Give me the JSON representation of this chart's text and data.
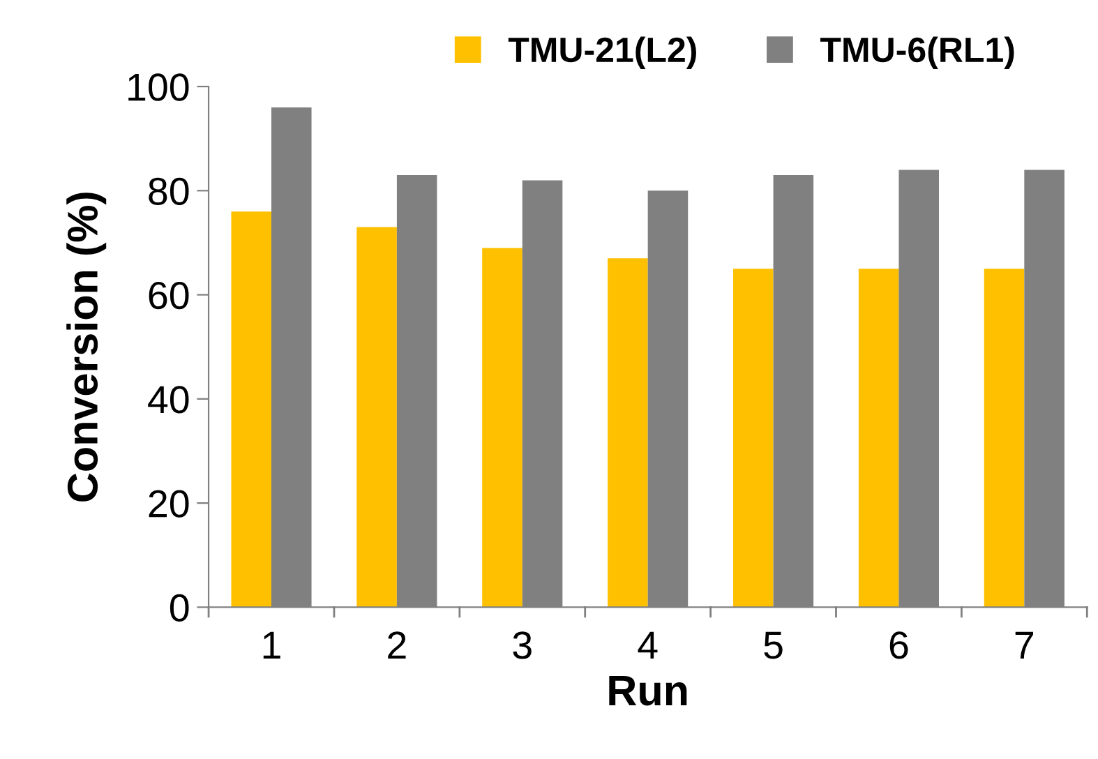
{
  "chart_data": {
    "type": "bar",
    "xlabel": "Run",
    "ylabel": "Conversion (%)",
    "categories": [
      "1",
      "2",
      "3",
      "4",
      "5",
      "6",
      "7"
    ],
    "series": [
      {
        "name": "TMU-21(L2)",
        "color": "#ffc000",
        "values": [
          76,
          73,
          69,
          67,
          65,
          65,
          65
        ]
      },
      {
        "name": "TMU-6(RL1)",
        "color": "#808080",
        "values": [
          96,
          83,
          82,
          80,
          83,
          84,
          84
        ]
      }
    ],
    "ylim": [
      0,
      100
    ],
    "yticks": [
      0,
      20,
      40,
      60,
      80,
      100
    ],
    "grid": false,
    "legend": "top"
  }
}
